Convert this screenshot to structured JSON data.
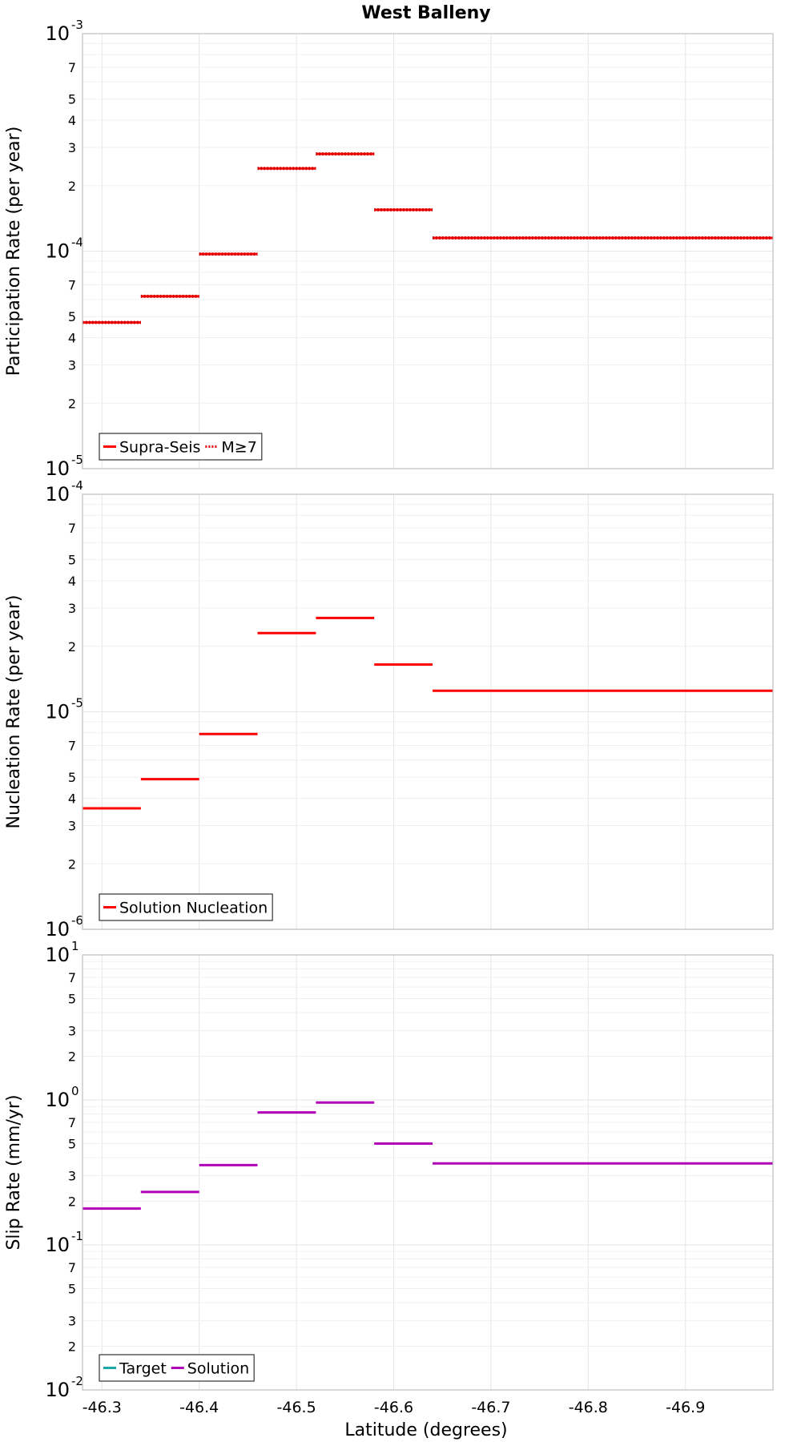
{
  "figure_title": "West Balleny",
  "x_axis": {
    "label": "Latitude (degrees)",
    "range": [
      -46.28,
      -46.99
    ],
    "ticks": [
      -46.3,
      -46.4,
      -46.5,
      -46.6,
      -46.7,
      -46.8,
      -46.9
    ],
    "tick_labels": [
      "-46.3",
      "-46.4",
      "-46.5",
      "-46.6",
      "-46.7",
      "-46.8",
      "-46.9"
    ]
  },
  "chart_data": [
    {
      "type": "line",
      "step": true,
      "yscale": "log",
      "ylabel": "Participation Rate (per year)",
      "ylim_exp": [
        -5,
        -3
      ],
      "minor_tick_labels": [
        "2",
        "3",
        "4",
        "5",
        "7"
      ],
      "legend": [
        {
          "label": "Supra-Seis",
          "color": "#ff0000",
          "style": "solid"
        },
        {
          "label": "M≥7",
          "color": "#ff0000",
          "style": "dotted"
        }
      ],
      "series": [
        {
          "name": "Supra-Seis",
          "color": "#ff0000",
          "style": "solid",
          "segments": [
            {
              "x0": -46.28,
              "x1": -46.34,
              "y": 4.7e-05
            },
            {
              "x0": -46.34,
              "x1": -46.4,
              "y": 6.2e-05
            },
            {
              "x0": -46.4,
              "x1": -46.46,
              "y": 9.7e-05
            },
            {
              "x0": -46.46,
              "x1": -46.52,
              "y": 0.00024
            },
            {
              "x0": -46.52,
              "x1": -46.58,
              "y": 0.00028
            },
            {
              "x0": -46.58,
              "x1": -46.64,
              "y": 0.000155
            },
            {
              "x0": -46.64,
              "x1": -46.99,
              "y": 0.000115
            }
          ]
        },
        {
          "name": "M≥7",
          "color": "#ff0000",
          "style": "dotted",
          "segments": [
            {
              "x0": -46.28,
              "x1": -46.34,
              "y": 4.7e-05
            },
            {
              "x0": -46.34,
              "x1": -46.4,
              "y": 6.2e-05
            },
            {
              "x0": -46.4,
              "x1": -46.46,
              "y": 9.7e-05
            },
            {
              "x0": -46.46,
              "x1": -46.52,
              "y": 0.00024
            },
            {
              "x0": -46.52,
              "x1": -46.58,
              "y": 0.00028
            },
            {
              "x0": -46.58,
              "x1": -46.64,
              "y": 0.000155
            },
            {
              "x0": -46.64,
              "x1": -46.99,
              "y": 0.000115
            }
          ]
        }
      ]
    },
    {
      "type": "line",
      "step": true,
      "yscale": "log",
      "ylabel": "Nucleation Rate (per year)",
      "ylim_exp": [
        -6,
        -4
      ],
      "minor_tick_labels": [
        "2",
        "3",
        "4",
        "5",
        "7"
      ],
      "legend": [
        {
          "label": "Solution Nucleation",
          "color": "#ff0000",
          "style": "solid"
        }
      ],
      "series": [
        {
          "name": "Solution Nucleation",
          "color": "#ff0000",
          "style": "solid",
          "segments": [
            {
              "x0": -46.28,
              "x1": -46.34,
              "y": 3.6e-06
            },
            {
              "x0": -46.34,
              "x1": -46.4,
              "y": 4.9e-06
            },
            {
              "x0": -46.4,
              "x1": -46.46,
              "y": 7.9e-06
            },
            {
              "x0": -46.46,
              "x1": -46.52,
              "y": 2.3e-05
            },
            {
              "x0": -46.52,
              "x1": -46.58,
              "y": 2.7e-05
            },
            {
              "x0": -46.58,
              "x1": -46.64,
              "y": 1.65e-05
            },
            {
              "x0": -46.64,
              "x1": -46.99,
              "y": 1.25e-05
            }
          ]
        }
      ]
    },
    {
      "type": "line",
      "step": true,
      "yscale": "log",
      "ylabel": "Slip Rate (mm/yr)",
      "ylim_exp": [
        -2,
        1
      ],
      "minor_tick_labels": [
        "2",
        "3",
        "5",
        "7"
      ],
      "legend": [
        {
          "label": "Target",
          "color": "#1aa9a6",
          "style": "solid"
        },
        {
          "label": "Solution",
          "color": "#b000b8",
          "style": "solid"
        }
      ],
      "series": [
        {
          "name": "Solution",
          "color": "#b000b8",
          "style": "solid",
          "segments": [
            {
              "x0": -46.28,
              "x1": -46.34,
              "y": 0.178
            },
            {
              "x0": -46.34,
              "x1": -46.4,
              "y": 0.232
            },
            {
              "x0": -46.4,
              "x1": -46.46,
              "y": 0.355
            },
            {
              "x0": -46.46,
              "x1": -46.52,
              "y": 0.82
            },
            {
              "x0": -46.52,
              "x1": -46.58,
              "y": 0.96
            },
            {
              "x0": -46.58,
              "x1": -46.64,
              "y": 0.5
            },
            {
              "x0": -46.64,
              "x1": -46.99,
              "y": 0.365
            }
          ]
        }
      ]
    }
  ]
}
